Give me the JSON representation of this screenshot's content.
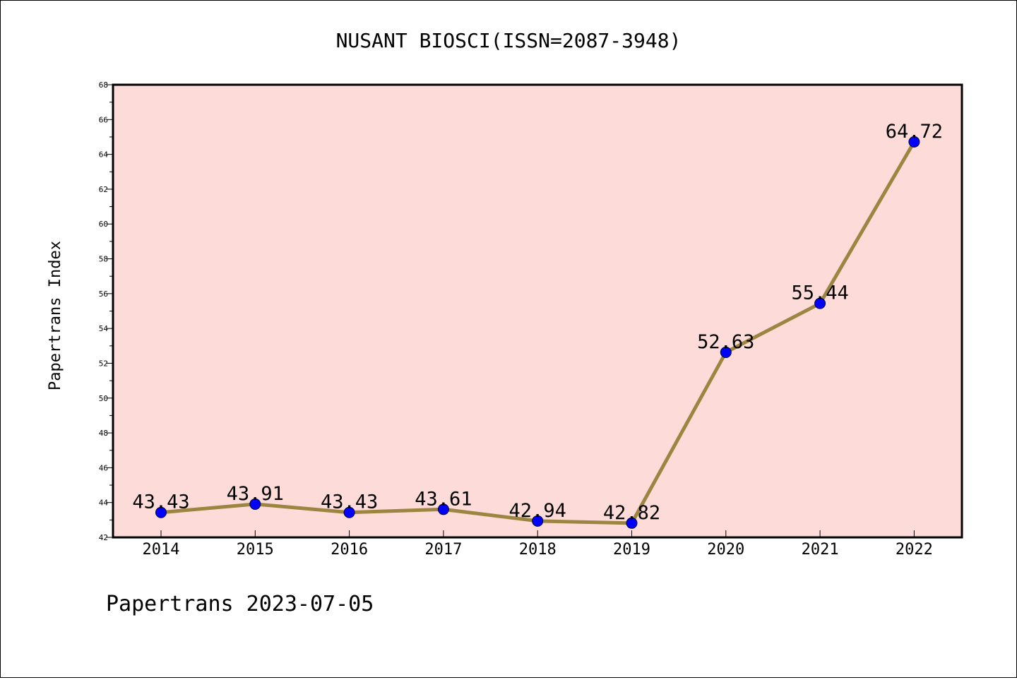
{
  "chart_data": {
    "type": "line",
    "title": "NUSANT BIOSCI(ISSN=2087-3948)",
    "xlabel": "",
    "ylabel": "Papertrans Index",
    "categories": [
      "2014",
      "2015",
      "2016",
      "2017",
      "2018",
      "2019",
      "2020",
      "2021",
      "2022"
    ],
    "series": [
      {
        "values": [
          43.43,
          43.91,
          43.43,
          43.61,
          42.94,
          42.82,
          52.63,
          55.44,
          64.72
        ]
      }
    ],
    "data_labels": [
      "43.43",
      "43.91",
      "43.43",
      "43.61",
      "42.94",
      "42.82",
      "52.63",
      "55.44",
      "64.72"
    ],
    "ylim": [
      42,
      68
    ],
    "yticks": [
      "42",
      "44",
      "46",
      "48",
      "50",
      "52",
      "54",
      "56",
      "58",
      "60",
      "62",
      "64",
      "66",
      "68"
    ],
    "grid": false,
    "legend": "none",
    "colors": {
      "plot_background": "#fddbd8",
      "line": "#9c8540",
      "marker": "#0000ff",
      "axes": "#000000"
    }
  },
  "footer": "Papertrans 2023-07-05"
}
